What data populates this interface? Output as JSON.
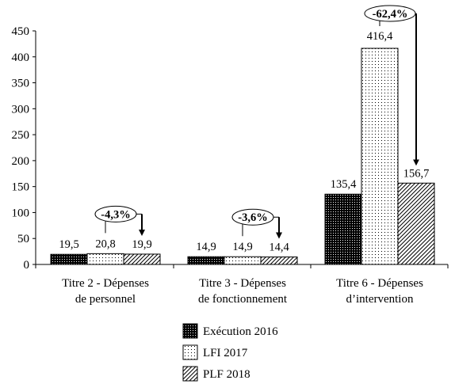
{
  "chart_data": {
    "type": "bar",
    "categories": [
      [
        "Titre 2 - Dépenses",
        "de personnel"
      ],
      [
        "Titre 3 - Dépenses",
        "de fonctionnement"
      ],
      [
        "Titre 6 - Dépenses",
        "d’intervention"
      ]
    ],
    "series": [
      {
        "name": "Exécution 2016",
        "values": [
          19.5,
          14.9,
          135.4
        ],
        "labels": [
          "19,5",
          "14,9",
          "135,4"
        ],
        "pattern": "dense-dots"
      },
      {
        "name": "LFI 2017",
        "values": [
          20.8,
          14.9,
          416.4
        ],
        "labels": [
          "20,8",
          "14,9",
          "416,4"
        ],
        "pattern": "sparse-dots"
      },
      {
        "name": "PLF 2018",
        "values": [
          19.9,
          14.4,
          156.7
        ],
        "labels": [
          "19,9",
          "14,4",
          "156,7"
        ],
        "pattern": "diagonal-hatch"
      }
    ],
    "ylim": [
      0,
      450
    ],
    "yticks": [
      "0",
      "50",
      "100",
      "150",
      "200",
      "250",
      "300",
      "350",
      "400",
      "450"
    ],
    "annotations": [
      "-4,3%",
      "-3,6%",
      "-62,4%"
    ],
    "legend_position": "bottom",
    "grid": false
  }
}
